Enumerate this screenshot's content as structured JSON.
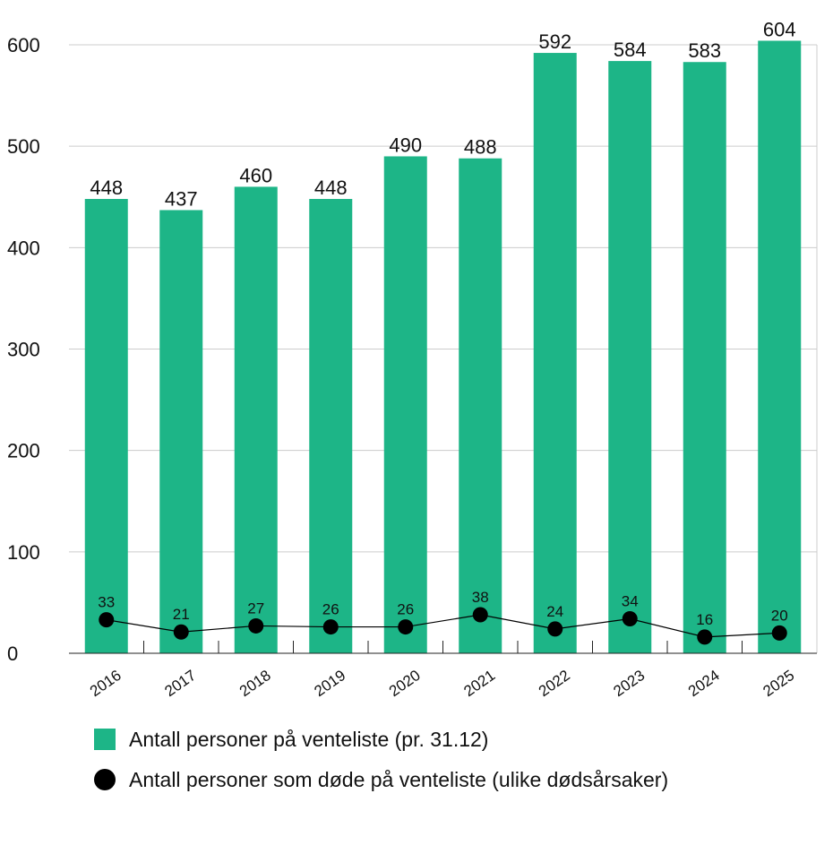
{
  "chart_data": {
    "type": "bar",
    "categories": [
      "2016",
      "2017",
      "2018",
      "2019",
      "2020",
      "2021",
      "2022",
      "2023",
      "2024",
      "2025"
    ],
    "series": [
      {
        "name": "Antall personer på venteliste (pr. 31.12)",
        "type": "bar",
        "values": [
          448,
          437,
          460,
          448,
          490,
          488,
          592,
          584,
          583,
          604
        ]
      },
      {
        "name": "Antall personer som døde på venteliste (ulike dødsårsaker)",
        "type": "line",
        "values": [
          33,
          21,
          27,
          26,
          26,
          38,
          24,
          34,
          16,
          20
        ]
      }
    ],
    "yticks": [
      "0",
      "100",
      "200",
      "300",
      "400",
      "500",
      "600"
    ],
    "ylim": [
      0,
      600
    ],
    "grid": true,
    "legend_position": "bottom-left",
    "colors": {
      "bar": "#1db587",
      "line": "#000000",
      "grid": "#cccccc"
    }
  },
  "legend": {
    "bars": "Antall personer på venteliste (pr. 31.12)",
    "line": "Antall personer som døde på venteliste (ulike dødsårsaker)"
  }
}
